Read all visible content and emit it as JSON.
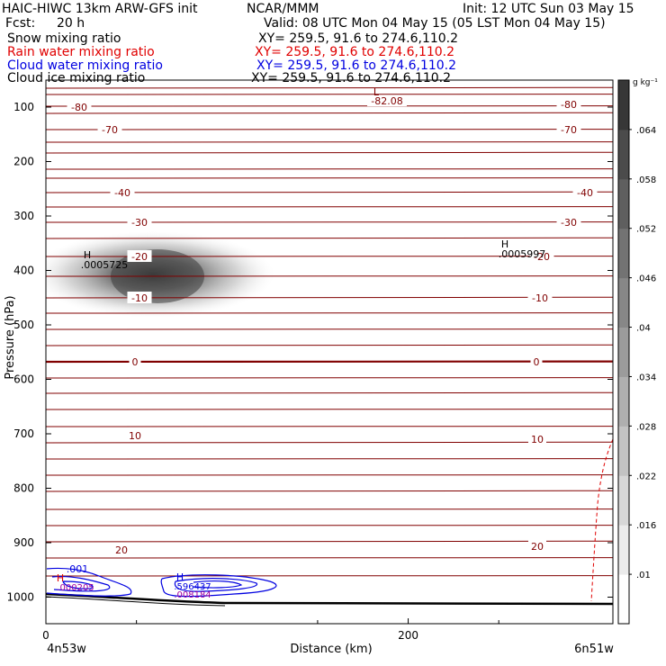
{
  "header": {
    "model": "HAIC-HIWC 13km ARW-GFS init",
    "org": "NCAR/MMM",
    "init": "Init: 12 UTC Sun 03 May 15",
    "fcst_label": "Fcst:",
    "fcst_value": "20 h",
    "valid": "Valid: 08 UTC Mon 04 May 15 (05 LST Mon 04 May 15)"
  },
  "fields": [
    {
      "name": "Snow mixing ratio",
      "xy": "XY= 259.5, 91.6 to 274.6,110.2",
      "color": "#000000"
    },
    {
      "name": "Rain water mixing ratio",
      "xy": "XY= 259.5, 91.6 to 274.6,110.2",
      "color": "#e00000"
    },
    {
      "name": "Cloud water mixing ratio",
      "xy": "XY= 259.5, 91.6 to 274.6,110.2",
      "color": "#0000e0"
    },
    {
      "name": "Cloud ice mixing ratio",
      "xy": "XY= 259.5, 91.6 to 274.6,110.2",
      "color": "#000000"
    }
  ],
  "chart_data": {
    "type": "heatmap",
    "xlabel": "Distance (km)",
    "ylabel": "Pressure (hPa)",
    "xlim": [
      0,
      313
    ],
    "ylim": [
      1050,
      50
    ],
    "x_ticks": [
      "0",
      "200"
    ],
    "y_ticks": [
      "100",
      "200",
      "300",
      "400",
      "500",
      "600",
      "700",
      "800",
      "900",
      "1000"
    ],
    "x_endpoint_labels": [
      "4n53w",
      "6n51w"
    ],
    "colorbar": {
      "units": "g kg⁻¹",
      "ticks": [
        ".01",
        ".016",
        ".022",
        ".028",
        ".034",
        ".04",
        ".046",
        ".052",
        ".058",
        ".064"
      ]
    },
    "temperature_contours": {
      "color": "#800000",
      "labels": [
        "-80",
        "-70",
        "-40",
        "-30",
        "-20",
        "-10",
        "0",
        "10",
        "20"
      ],
      "minimum": {
        "mark": "L",
        "value": "-82.08"
      }
    },
    "shaded_maxima": [
      {
        "mark": "H",
        "value": ".0005725",
        "x_km": 30,
        "p_hpa": 410
      },
      {
        "mark": "H",
        "value": ".0005997",
        "x_km": 268,
        "p_hpa": 378
      }
    ],
    "cloud_water": {
      "color": "#0000e0",
      "contour_label": ".001",
      "maximum": {
        "mark": "H",
        "value": ".596437"
      }
    },
    "rain_water": {
      "color": "#e00000",
      "maxima": [
        {
          "mark": "H",
          "value": ".000205"
        },
        {
          "value": ".008184"
        }
      ]
    }
  }
}
